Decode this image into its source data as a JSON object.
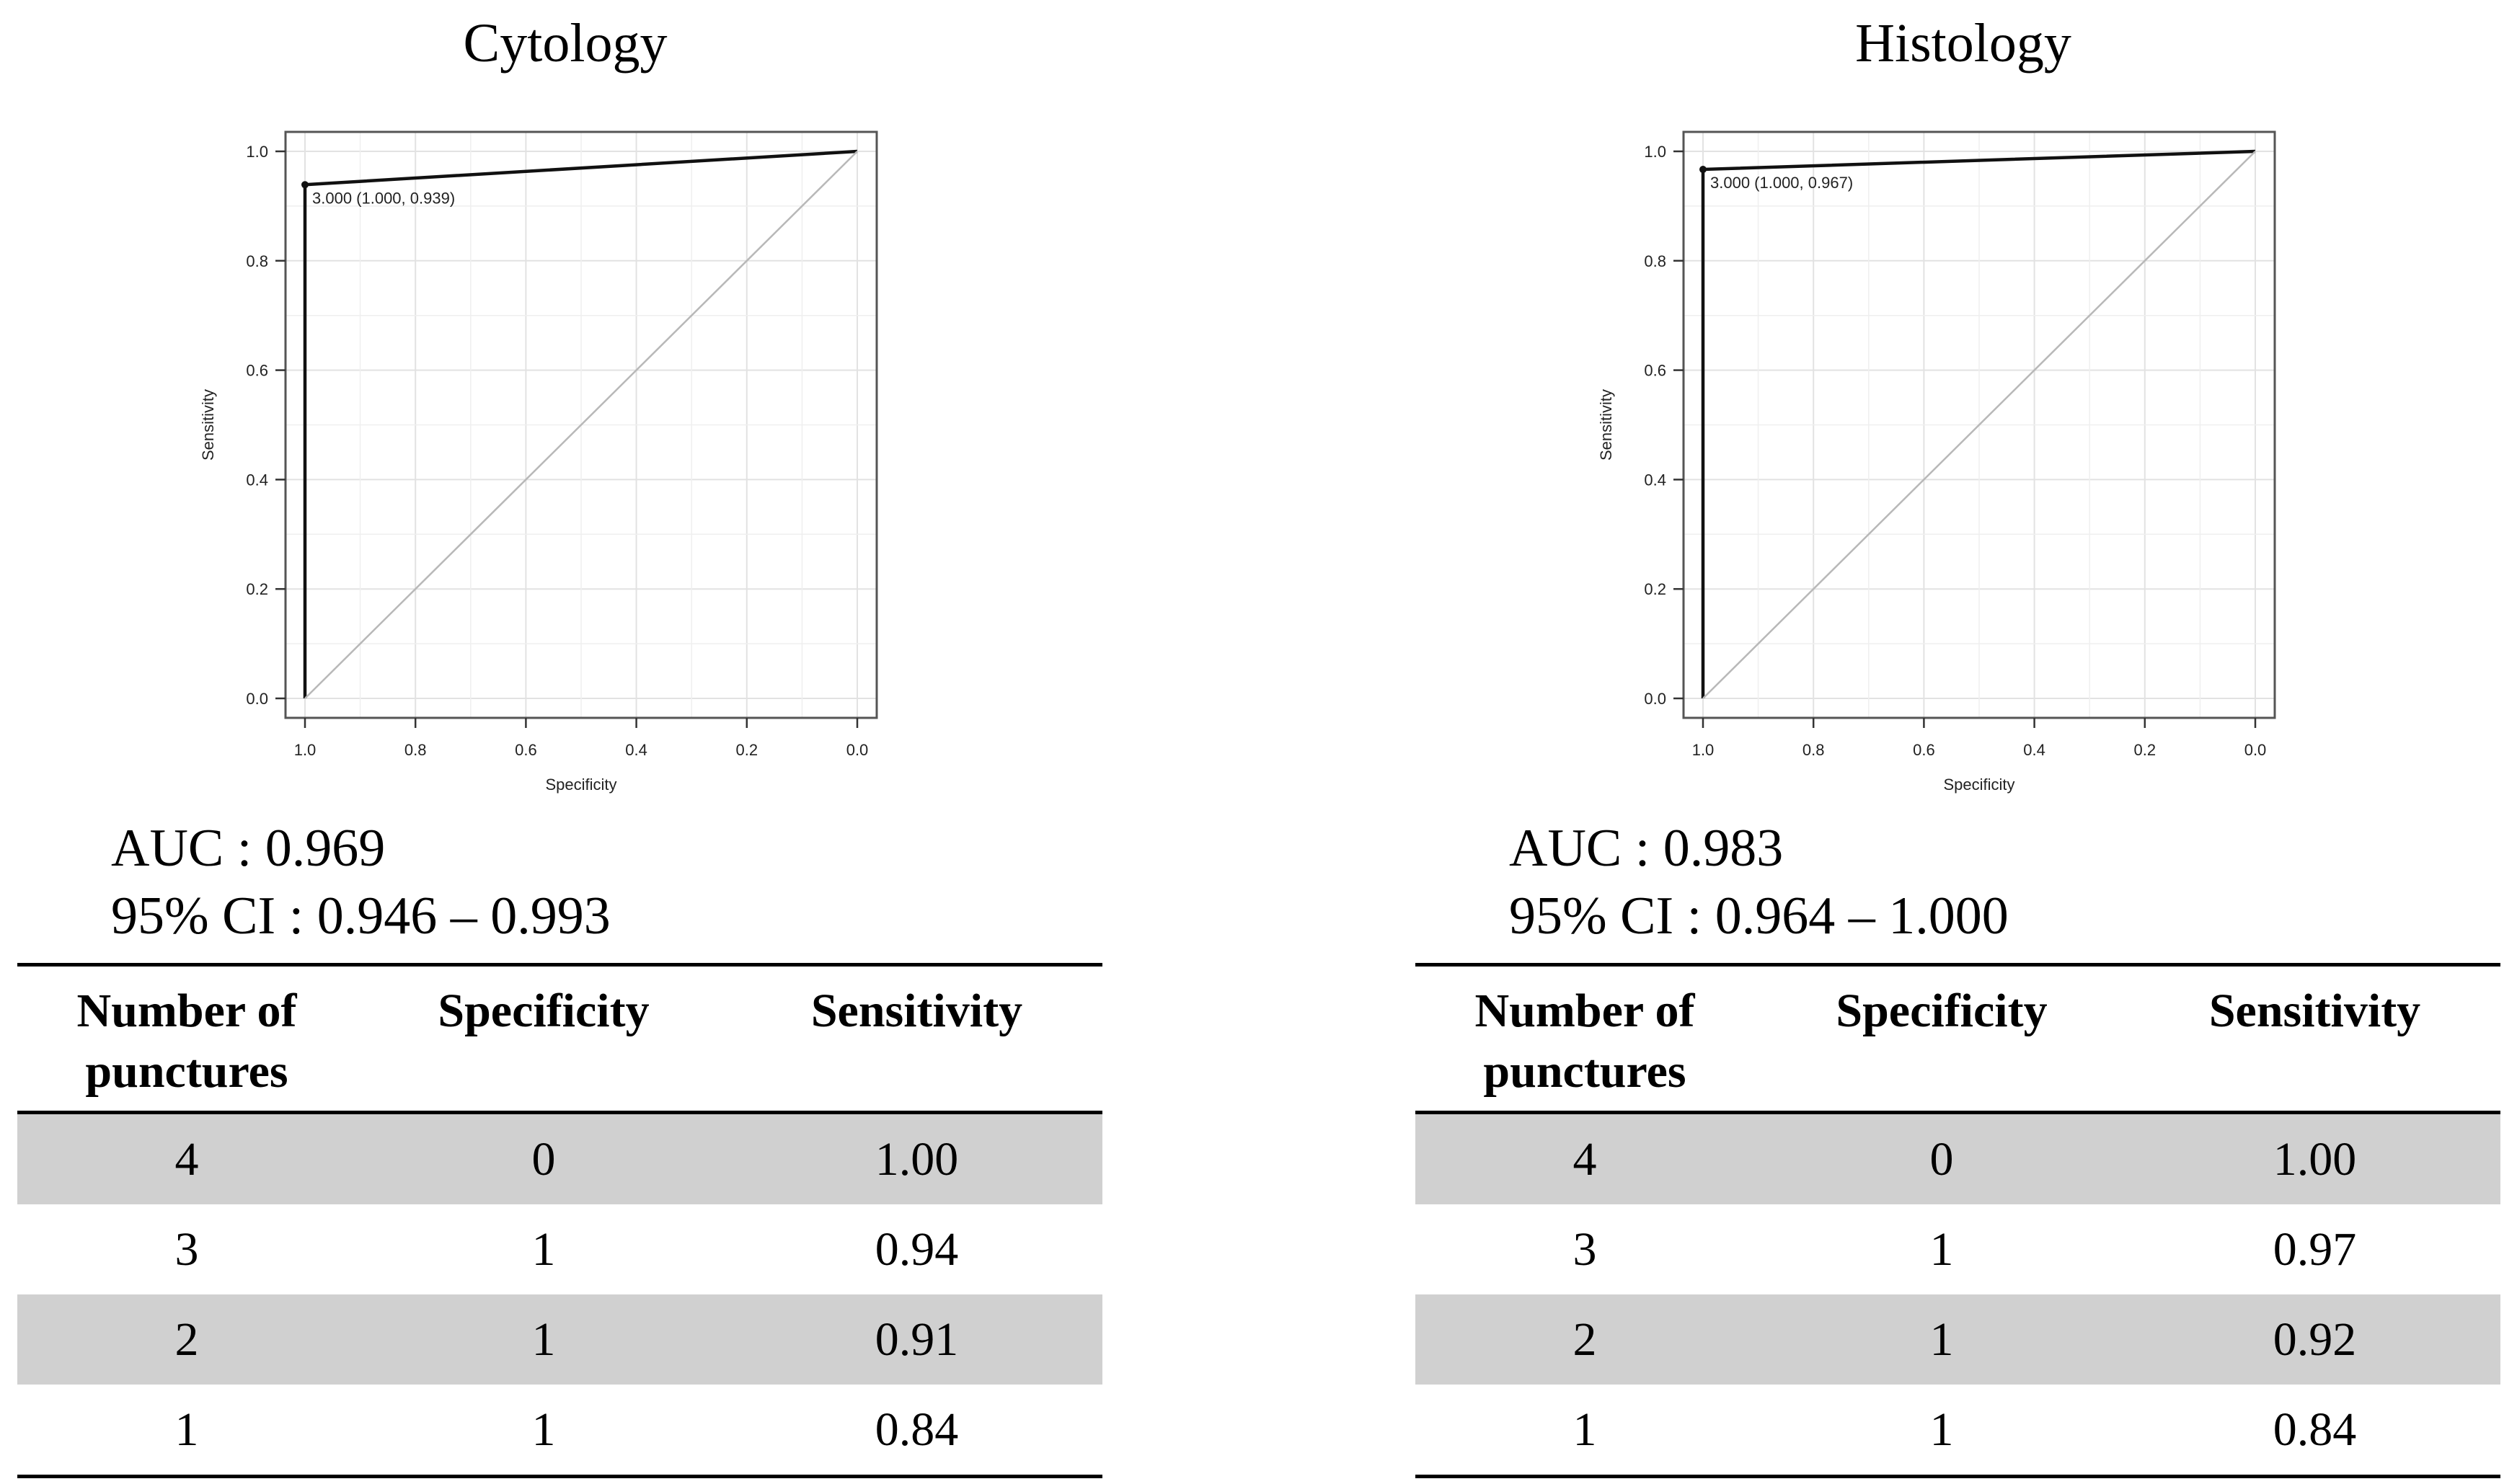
{
  "chart_data": [
    {
      "type": "line",
      "title": "Cytology",
      "xlabel": "Specificity",
      "ylabel": "Sensitivity",
      "xlim": [
        1.0,
        0.0
      ],
      "ylim": [
        0.0,
        1.0
      ],
      "x_ticks": [
        "1.0",
        "0.8",
        "0.6",
        "0.4",
        "0.2",
        "0.0"
      ],
      "y_ticks": [
        "0.0",
        "0.2",
        "0.4",
        "0.6",
        "0.8",
        "1.0"
      ],
      "grid": true,
      "series": [
        {
          "name": "ROC",
          "x": [
            1.0,
            1.0,
            0.0
          ],
          "y": [
            0.0,
            0.939,
            1.0
          ]
        },
        {
          "name": "reference",
          "x": [
            1.0,
            0.0
          ],
          "y": [
            0.0,
            1.0
          ]
        }
      ],
      "annotation": {
        "text": "3.000 (1.000, 0.939)",
        "x": 1.0,
        "y": 0.939
      },
      "auc_label": "AUC : 0.969",
      "ci_label": "95% CI : 0.946 – 0.993",
      "table": {
        "headers": [
          "Number of punctures",
          "Specificity",
          "Sensitivity"
        ],
        "rows": [
          [
            "4",
            "0",
            "1.00"
          ],
          [
            "3",
            "1",
            "0.94"
          ],
          [
            "2",
            "1",
            "0.91"
          ],
          [
            "1",
            "1",
            "0.84"
          ]
        ]
      }
    },
    {
      "type": "line",
      "title": "Histology",
      "xlabel": "Specificity",
      "ylabel": "Sensitivity",
      "xlim": [
        1.0,
        0.0
      ],
      "ylim": [
        0.0,
        1.0
      ],
      "x_ticks": [
        "1.0",
        "0.8",
        "0.6",
        "0.4",
        "0.2",
        "0.0"
      ],
      "y_ticks": [
        "0.0",
        "0.2",
        "0.4",
        "0.6",
        "0.8",
        "1.0"
      ],
      "grid": true,
      "series": [
        {
          "name": "ROC",
          "x": [
            1.0,
            1.0,
            0.0
          ],
          "y": [
            0.0,
            0.967,
            1.0
          ]
        },
        {
          "name": "reference",
          "x": [
            1.0,
            0.0
          ],
          "y": [
            0.0,
            1.0
          ]
        }
      ],
      "annotation": {
        "text": "3.000 (1.000, 0.967)",
        "x": 1.0,
        "y": 0.967
      },
      "auc_label": "AUC : 0.983",
      "ci_label": "95% CI : 0.964 – 1.000",
      "table": {
        "headers": [
          "Number of punctures",
          "Specificity",
          "Sensitivity"
        ],
        "rows": [
          [
            "4",
            "0",
            "1.00"
          ],
          [
            "3",
            "1",
            "0.97"
          ],
          [
            "2",
            "1",
            "0.92"
          ],
          [
            "1",
            "1",
            "0.84"
          ]
        ]
      }
    }
  ]
}
